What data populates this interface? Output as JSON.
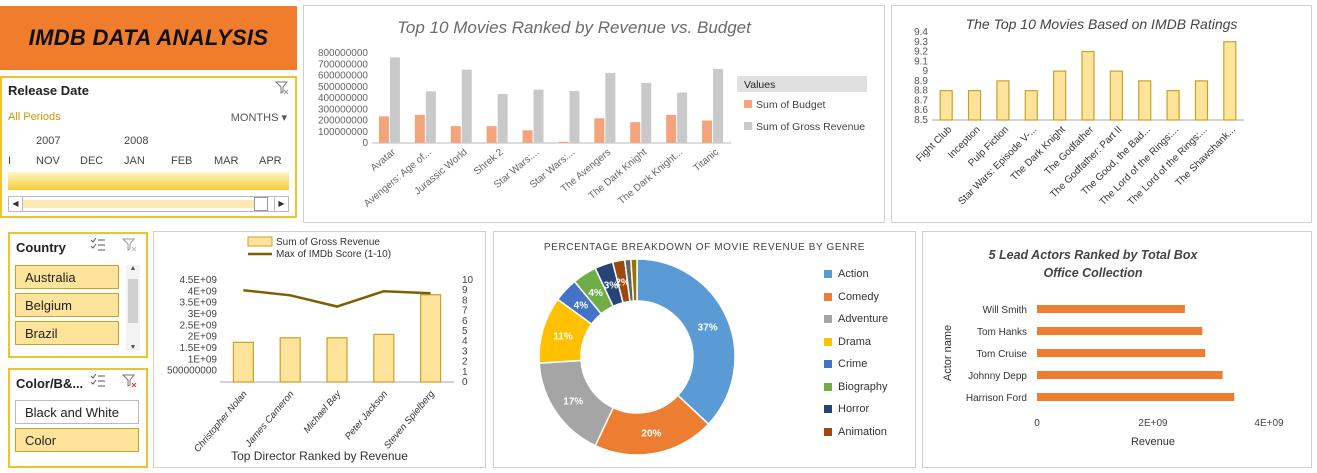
{
  "dashboard_title": "IMDB DATA ANALYSIS",
  "timeline": {
    "header": "Release Date",
    "all_periods": "All Periods",
    "period_unit": "MONTHS ▾",
    "years": [
      "2007",
      "2008"
    ],
    "months": [
      "I",
      "NOV",
      "DEC",
      "JAN",
      "FEB",
      "MAR",
      "APR"
    ]
  },
  "country_slicer": {
    "header": "Country",
    "items": [
      "Australia",
      "Belgium",
      "Brazil"
    ]
  },
  "color_slicer": {
    "header": "Color/B&...",
    "items": [
      {
        "label": "Black and White",
        "selected": false
      },
      {
        "label": "Color",
        "selected": true
      }
    ]
  },
  "chart_data": [
    {
      "id": "revenue_vs_budget",
      "type": "bar",
      "title": "Top 10 Movies Ranked by Revenue vs. Budget",
      "categories": [
        "Avatar",
        "Avengers: Age of...",
        "Jurassic World",
        "Shrek 2",
        "Star Wars:...",
        "Star Wars:...",
        "The Avengers",
        "The Dark Knight",
        "The Dark Knight...",
        "Titanic"
      ],
      "series": [
        {
          "name": "Sum of Budget",
          "color": "#f4a47a",
          "values": [
            237000000,
            250000000,
            150000000,
            150000000,
            113000000,
            11000000,
            220000000,
            185000000,
            250000000,
            200000000
          ]
        },
        {
          "name": "Sum of Gross Revenue",
          "color": "#c9c9c9",
          "values": [
            760505847,
            458991599,
            652177271,
            436471036,
            474544677,
            460935665,
            623279547,
            533316061,
            448130642,
            658672302
          ]
        }
      ],
      "legend_title": "Values",
      "ylim": [
        0,
        800000000
      ],
      "yticks": [
        "0",
        "100000000",
        "200000000",
        "300000000",
        "400000000",
        "500000000",
        "600000000",
        "700000000",
        "800000000"
      ]
    },
    {
      "id": "imdb_ratings",
      "type": "bar",
      "title": "The Top 10 Movies Based on IMDB Ratings",
      "categories": [
        "Fight Club",
        "Inception",
        "Pulp Fiction",
        "Star Wars: Episode V-...",
        "The Dark Knight",
        "The Godfather",
        "The Godfather: Part II",
        "The Good, the Bad...",
        "The Lord of the Rings:...",
        "The Lord of the Rings:...",
        "The Shawshank..."
      ],
      "values": [
        8.8,
        8.8,
        8.9,
        8.8,
        9.0,
        9.2,
        9.0,
        8.9,
        8.8,
        8.9,
        9.3
      ],
      "ylim": [
        8.5,
        9.4
      ],
      "yticks": [
        "8.5",
        "8.6",
        "8.7",
        "8.8",
        "8.9",
        "9",
        "9.1",
        "9.2",
        "9.3",
        "9.4"
      ]
    },
    {
      "id": "directors",
      "type": "bar",
      "xlabel": "Top Director Ranked by Revenue",
      "categories": [
        "Christopher Nolan",
        "James Cameron",
        "Michael Bay",
        "Peter Jackson",
        "Steven Spielberg"
      ],
      "series": [
        {
          "name": "Sum of Gross Revenue",
          "type": "bar",
          "values": [
            1750000000,
            1950000000,
            1950000000,
            2100000000,
            3850000000
          ]
        },
        {
          "name": "Max of IMDb Score (1-10)",
          "type": "line",
          "values": [
            9.0,
            8.5,
            7.4,
            8.9,
            8.7
          ]
        }
      ],
      "ylim_left": [
        0,
        4500000000
      ],
      "ylim_right": [
        0,
        10
      ],
      "yticks_left": [
        "500000000",
        "1E+09",
        "1.5E+09",
        "2E+09",
        "2.5E+09",
        "3E+09",
        "3.5E+09",
        "4E+09",
        "4.5E+09"
      ],
      "yticks_right": [
        "0",
        "1",
        "2",
        "3",
        "4",
        "5",
        "6",
        "7",
        "8",
        "9",
        "10"
      ]
    },
    {
      "id": "genre_breakdown",
      "type": "pie",
      "title": "PERCENTAGE BREAKDOWN OF MOVIE REVENUE BY GENRE",
      "slices": [
        {
          "label": "Action",
          "value": 37,
          "display": "37%",
          "color": "#5b9bd5"
        },
        {
          "label": "Comedy",
          "value": 20,
          "display": "20%",
          "color": "#ed7d31"
        },
        {
          "label": "Adventure",
          "value": 17,
          "display": "17%",
          "color": "#a5a5a5"
        },
        {
          "label": "Drama",
          "value": 11,
          "display": "11%",
          "color": "#ffc000"
        },
        {
          "label": "Crime",
          "value": 4,
          "display": "4%",
          "color": "#4472c4"
        },
        {
          "label": "Biography",
          "value": 4,
          "display": "4%",
          "color": "#70ad47"
        },
        {
          "label": "Horror",
          "value": 3,
          "display": "3%",
          "color": "#264478"
        },
        {
          "label": "Animation",
          "value": 2,
          "display": "2%",
          "color": "#9e480e"
        },
        {
          "label": "Other 1",
          "value": 1,
          "display": "",
          "color": "#636363"
        },
        {
          "label": "Other 2",
          "value": 1,
          "display": "",
          "color": "#997300"
        }
      ],
      "legend": [
        "Action",
        "Comedy",
        "Adventure",
        "Drama",
        "Crime",
        "Biography",
        "Horror",
        "Animation"
      ]
    },
    {
      "id": "lead_actors",
      "type": "bar",
      "orientation": "horizontal",
      "title": "5 Lead Actors Ranked by Total Box Office Collection",
      "categories": [
        "Will Smith",
        "Tom Hanks",
        "Tom Cruise",
        "Johnny Depp",
        "Harrison Ford"
      ],
      "values": [
        2550000000,
        2850000000,
        2900000000,
        3200000000,
        3400000000
      ],
      "xlabel": "Revenue",
      "ylabel": "Actor name",
      "xlim": [
        0,
        4000000000
      ],
      "xticks": [
        "0",
        "2E+09",
        "4E+09"
      ]
    }
  ]
}
